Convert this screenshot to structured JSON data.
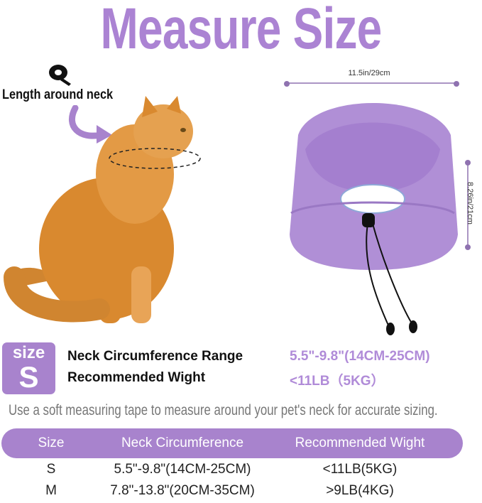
{
  "title": "Measure Size",
  "neck_label": "Length around neck",
  "dimensions": {
    "width": "11.5in/29cm",
    "height": "8.26in/21cm"
  },
  "badge": {
    "word": "size",
    "size": "S"
  },
  "specs": [
    {
      "label": "Neck Circumference Range",
      "value": "5.5\"-9.8\"(14CM-25CM)"
    },
    {
      "label": "Recommended Wight",
      "value": "<11LB（5KG）"
    }
  ],
  "hint": "Use a soft measuring tape to measure around your pet's  neck for accurate sizing.",
  "table": {
    "headers": [
      "Size",
      "Neck Circumference",
      "Recommended Wight"
    ],
    "rows": [
      [
        "S",
        "5.5\"-9.8\"(14CM-25CM)",
        "<11LB(5KG)"
      ],
      [
        "M",
        "7.8\"-13.8\"(20CM-35CM)",
        ">9LB(4KG)"
      ]
    ]
  },
  "colors": {
    "accent": "#a883cd",
    "collar": "#b08fd6",
    "cat": "#d9892f"
  },
  "icons": [
    "measuring-tape-icon",
    "curved-arrow-icon",
    "paw-icon"
  ]
}
